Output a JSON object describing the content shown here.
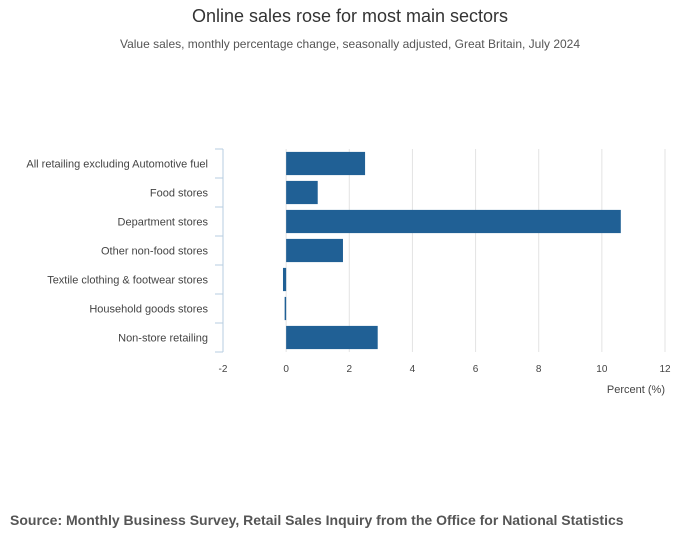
{
  "title": "Online sales rose for most main sectors",
  "subtitle": "Value sales, monthly percentage change, seasonally adjusted, Great Britain, July 2024",
  "source": "Source: Monthly Business Survey, Retail Sales Inquiry from the Office for National Statistics",
  "colors": {
    "bar": "#206095",
    "grid": "#e3e3e3",
    "axis": "#b7cde0"
  },
  "chart_data": {
    "type": "bar",
    "orientation": "horizontal",
    "title": "Online sales rose for most main sectors",
    "subtitle": "Value sales, monthly percentage change, seasonally adjusted, Great Britain, July 2024",
    "categories": [
      "All retailing excluding Automotive fuel",
      "Food stores",
      "Department stores",
      "Other non-food stores",
      "Textile clothing & footwear stores",
      "Household goods stores",
      "Non-store retailing"
    ],
    "values": [
      2.5,
      1.0,
      10.6,
      1.8,
      -0.1,
      -0.03,
      2.9
    ],
    "xlabel": "Percent (%)",
    "ylabel": "",
    "xlim": [
      -2,
      12
    ],
    "xticks": [
      -2,
      0,
      2,
      4,
      6,
      8,
      10,
      12
    ],
    "grid": true
  }
}
